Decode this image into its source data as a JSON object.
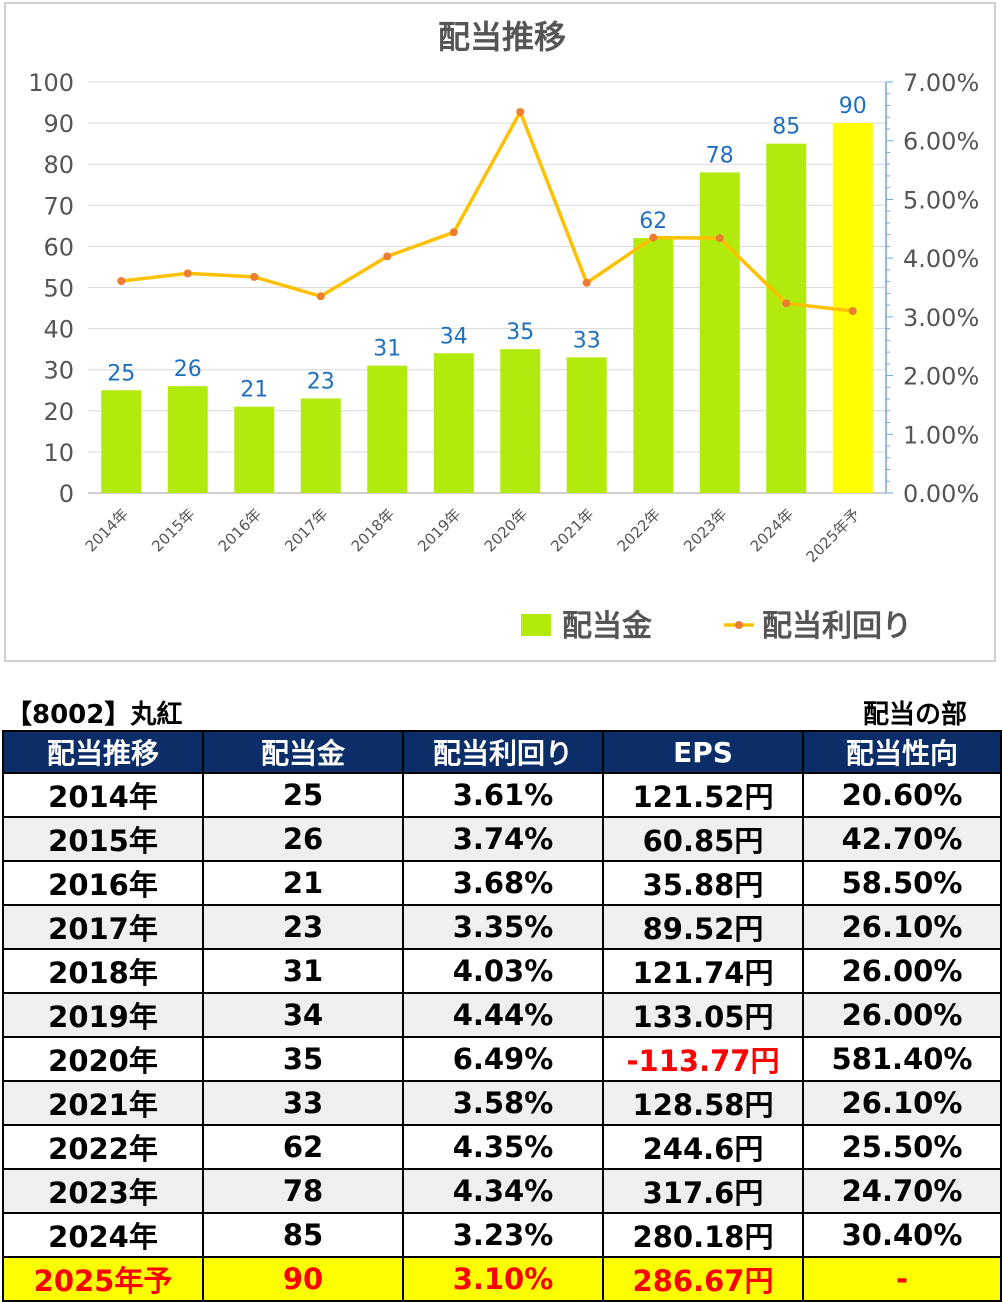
{
  "chart_data": {
    "type": "bar",
    "title": "配当推移",
    "categories": [
      "2014年",
      "2015年",
      "2016年",
      "2017年",
      "2018年",
      "2019年",
      "2020年",
      "2021年",
      "2022年",
      "2023年",
      "2024年",
      "2025年予"
    ],
    "series": [
      {
        "name": "配当金",
        "type": "bar",
        "axis": "left",
        "values": [
          25,
          26,
          21,
          23,
          31,
          34,
          35,
          33,
          62,
          78,
          85,
          90
        ],
        "color": "#b2ea0e",
        "forecast_color": "#ffff00"
      },
      {
        "name": "配当利回り",
        "type": "line",
        "axis": "right",
        "values": [
          3.61,
          3.74,
          3.68,
          3.35,
          4.03,
          4.44,
          6.49,
          3.58,
          4.35,
          4.34,
          3.23,
          3.1
        ],
        "color": "#ffc000",
        "marker_color": "#ed7d31"
      }
    ],
    "left_axis": {
      "min": 0,
      "max": 100,
      "step": 10,
      "ticks": [
        "0",
        "10",
        "20",
        "30",
        "40",
        "50",
        "60",
        "70",
        "80",
        "90",
        "100"
      ]
    },
    "right_axis": {
      "min": 0,
      "max": 7,
      "step": 1,
      "ticks": [
        "0.00%",
        "1.00%",
        "2.00%",
        "3.00%",
        "4.00%",
        "5.00%",
        "6.00%",
        "7.00%"
      ]
    },
    "data_label_color": "#1f6fbf",
    "grid": true,
    "legend_position": "bottom-right"
  },
  "table": {
    "company_label": "【8002】丸紅",
    "section_label": "配当の部",
    "headers": [
      "配当推移",
      "配当金",
      "配当利回り",
      "EPS",
      "配当性向"
    ],
    "rows": [
      [
        "2014年",
        "25",
        "3.61%",
        "121.52円",
        "20.60%"
      ],
      [
        "2015年",
        "26",
        "3.74%",
        "60.85円",
        "42.70%"
      ],
      [
        "2016年",
        "21",
        "3.68%",
        "35.88円",
        "58.50%"
      ],
      [
        "2017年",
        "23",
        "3.35%",
        "89.52円",
        "26.10%"
      ],
      [
        "2018年",
        "31",
        "4.03%",
        "121.74円",
        "26.00%"
      ],
      [
        "2019年",
        "34",
        "4.44%",
        "133.05円",
        "26.00%"
      ],
      [
        "2020年",
        "35",
        "6.49%",
        "-113.77円",
        "581.40%"
      ],
      [
        "2021年",
        "33",
        "3.58%",
        "128.58円",
        "26.10%"
      ],
      [
        "2022年",
        "62",
        "4.35%",
        "244.6円",
        "25.50%"
      ],
      [
        "2023年",
        "78",
        "4.34%",
        "317.6円",
        "24.70%"
      ],
      [
        "2024年",
        "85",
        "3.23%",
        "280.18円",
        "30.40%"
      ],
      [
        "2025年予",
        "90",
        "3.10%",
        "286.67円",
        "-"
      ]
    ]
  }
}
